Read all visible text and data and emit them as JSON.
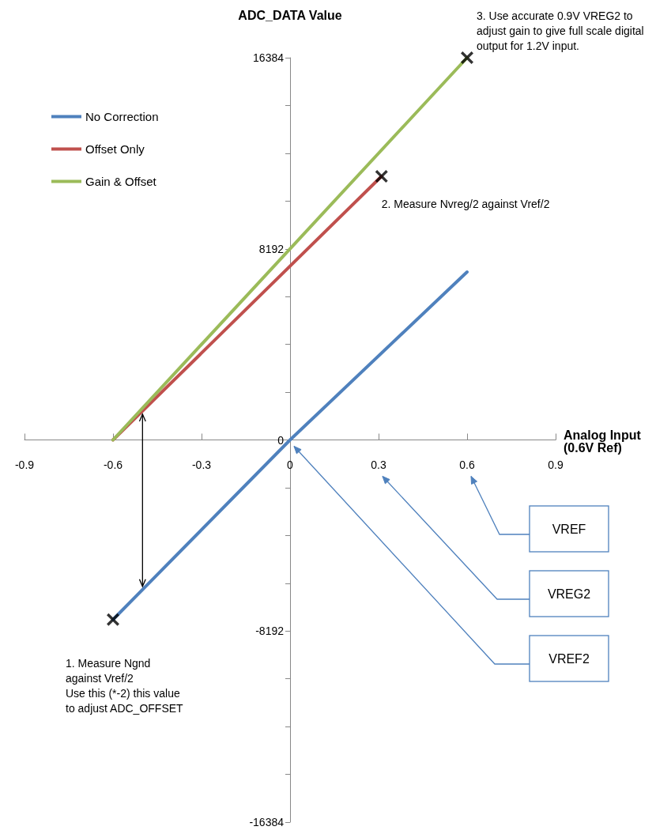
{
  "chart_data": {
    "type": "line",
    "xlabel": "Analog Input (0.6V Ref)",
    "ylabel": "ADC_DATA Value",
    "xlim": [
      -0.9,
      0.9
    ],
    "xticks": [
      -0.9,
      -0.6,
      -0.3,
      0,
      0.3,
      0.6,
      0.9
    ],
    "ylim": [
      -16384,
      16384
    ],
    "yticks": [
      -16384,
      {
        "value": -14336,
        "label": null
      },
      {
        "value": -12288,
        "label": null
      },
      {
        "value": -10240,
        "label": null
      },
      -8192,
      {
        "value": -6144,
        "label": null
      },
      {
        "value": -4096,
        "label": null
      },
      {
        "value": -2048,
        "label": null
      },
      0,
      {
        "value": 2048,
        "label": null
      },
      {
        "value": 4096,
        "label": null
      },
      {
        "value": 6144,
        "label": null
      },
      8192,
      {
        "value": 10240,
        "label": null
      },
      {
        "value": 12288,
        "label": null
      },
      {
        "value": 14336,
        "label": null
      },
      16384
    ],
    "legend": "top left",
    "marker": "none",
    "line_style": "solid",
    "series": [
      {
        "name": "No Correction",
        "color": "#4f81bd",
        "x": [
          -0.6,
          0,
          0.6
        ],
        "values": [
          -7700,
          0,
          7200
        ]
      },
      {
        "name": "Offset Only",
        "color": "#c0504d",
        "x": [
          -0.6,
          0.31
        ],
        "values": [
          0,
          11300
        ]
      },
      {
        "name": "Gain & Offset",
        "color": "#9bbb59",
        "x": [
          -0.6,
          0.6
        ],
        "values": [
          0,
          16384
        ]
      },
      {
        "type": "scatter",
        "marker": "cross",
        "color": "#000000",
        "x": [
          -0.6,
          0.31,
          0.6
        ],
        "values": [
          -7700,
          11300,
          16384
        ]
      }
    ],
    "annotations": [
      "1. Measure Ngnd\nagainst Vref/2\nUse this (*-2) this value\nto adjust ADC_OFFSET",
      {
        "text": "2. Measure Nvreg/2 against  Vref/2",
        "x": 0.31,
        "y": 11300
      },
      {
        "text": "3. Use accurate 0.9V VREG2 to adjust gain to give full scale digital output for 1.2V input.",
        "x": 0.6,
        "y": 16384
      },
      "VREF",
      "VREG2",
      "VREF2"
    ]
  }
}
